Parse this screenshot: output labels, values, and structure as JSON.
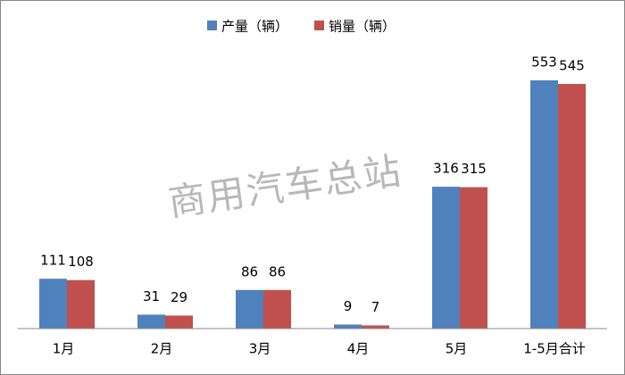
{
  "chart_data": {
    "type": "bar",
    "watermark": "商用汽车总站",
    "categories": [
      "1月",
      "2月",
      "3月",
      "4月",
      "5月",
      "1-5月合计"
    ],
    "series": [
      {
        "name": "产量（辆）",
        "color": "#4f81bd",
        "values": [
          111,
          31,
          86,
          9,
          316,
          553
        ]
      },
      {
        "name": "销量（辆）",
        "color": "#c0504d",
        "values": [
          108,
          29,
          86,
          7,
          315,
          545
        ]
      }
    ],
    "legend": "top"
  }
}
